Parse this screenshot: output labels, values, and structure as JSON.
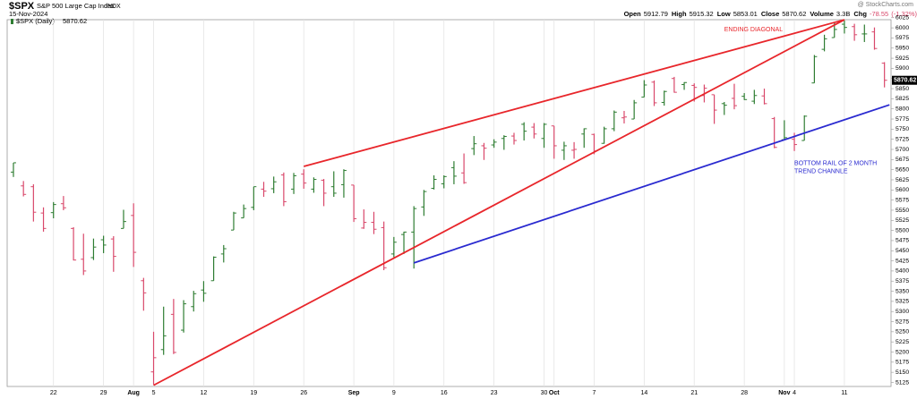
{
  "chart_data": {
    "type": "ohlc",
    "header": {
      "symbol": "$SPX",
      "name": "S&P 500 Large Cap Index",
      "exchange": "INDX",
      "date": "15-Nov-2024",
      "source": "@ StockCharts.com",
      "labels": {
        "open": "Open",
        "high": "High",
        "low": "Low",
        "close": "Close",
        "volume": "Volume",
        "chg": "Chg"
      },
      "volume": "3.3B",
      "chg": -78.55,
      "chg_pct": "(-1.32%)"
    },
    "categories": [
      null,
      null,
      null,
      null,
      "22",
      null,
      null,
      null,
      null,
      "29",
      null,
      null,
      "Aug",
      null,
      "5",
      null,
      null,
      null,
      null,
      "12",
      null,
      null,
      null,
      null,
      "19",
      null,
      null,
      null,
      null,
      "26",
      null,
      null,
      null,
      null,
      "Sep",
      null,
      null,
      null,
      "9",
      null,
      null,
      null,
      null,
      "16",
      null,
      null,
      null,
      null,
      "23",
      null,
      null,
      null,
      null,
      "30",
      "Oct",
      null,
      null,
      null,
      "7",
      null,
      null,
      null,
      null,
      "14",
      null,
      null,
      null,
      null,
      "21",
      null,
      null,
      null,
      null,
      "28",
      null,
      null,
      null,
      "Nov",
      "4",
      null,
      null,
      null,
      null,
      "11",
      null,
      null,
      null,
      null
    ],
    "series": [
      {
        "name": "$SPX (Daily)",
        "up_color": "#2e7d32",
        "down_color": "#d9486b",
        "open": [
          5644,
          5610,
          5608,
          5543,
          5544,
          5566,
          5505,
          5429,
          5433,
          5477,
          5479,
          5505,
          5537,
          5376,
          5151,
          5206,
          5293,
          5254,
          5312,
          5353,
          5376,
          5442,
          5501,
          5531,
          5557,
          5602,
          5603,
          5637,
          5602,
          5639,
          5602,
          5624,
          5608,
          5613,
          5612,
          5506,
          5520,
          5507,
          5442,
          5490,
          5496,
          5558,
          5604,
          5615,
          5655,
          5642,
          5702,
          5709,
          5711,
          5727,
          5733,
          5762,
          5755,
          5727,
          5758,
          5698,
          5698,
          5738,
          5737,
          5715,
          5751,
          5778,
          5775,
          5829,
          5866,
          5816,
          5875,
          5860,
          5858,
          5833,
          5835,
          5813,
          5826,
          5831,
          5819,
          5832,
          5776,
          5724,
          5725,
          5722,
          5864,
          5947,
          5976,
          6009,
          6003,
          5985,
          5990,
          5912.79
        ],
        "high": [
          5667,
          5622,
          5614,
          5557,
          5570,
          5585,
          5508,
          5492,
          5480,
          5487,
          5486,
          5551,
          5567,
          5383,
          5250,
          5312,
          5331,
          5328,
          5351,
          5375,
          5436,
          5464,
          5546,
          5564,
          5608,
          5620,
          5633,
          5643,
          5642,
          5651,
          5631,
          5627,
          5646,
          5651,
          5612,
          5552,
          5546,
          5522,
          5484,
          5497,
          5560,
          5600,
          5636,
          5636,
          5671,
          5690,
          5733,
          5716,
          5725,
          5735,
          5741,
          5767,
          5765,
          5765,
          5758,
          5719,
          5718,
          5752,
          5739,
          5756,
          5796,
          5795,
          5822,
          5871,
          5870,
          5845,
          5879,
          5866,
          5863,
          5860,
          5835,
          5817,
          5862,
          5839,
          5847,
          5850,
          5780,
          5772,
          5741,
          5784,
          5933,
          5983,
          6013,
          6018,
          6010,
          6008,
          6001,
          5915.32
        ],
        "low": [
          5632,
          5584,
          5522,
          5497,
          5530,
          5550,
          5426,
          5390,
          5427,
          5444,
          5398,
          5505,
          5410,
          5302,
          5120,
          5193,
          5195,
          5248,
          5300,
          5324,
          5376,
          5421,
          5501,
          5531,
          5550,
          5583,
          5592,
          5560,
          5590,
          5603,
          5593,
          5560,
          5583,
          5581,
          5521,
          5504,
          5491,
          5402,
          5434,
          5442,
          5406,
          5536,
          5601,
          5604,
          5614,
          5615,
          5686,
          5674,
          5704,
          5699,
          5712,
          5722,
          5727,
          5704,
          5677,
          5674,
          5677,
          5704,
          5688,
          5714,
          5745,
          5764,
          5775,
          5829,
          5807,
          5808,
          5840,
          5847,
          5818,
          5816,
          5763,
          5785,
          5799,
          5822,
          5812,
          5811,
          5703,
          5724,
          5696,
          5722,
          5864,
          5942,
          5976,
          5986,
          5968,
          5965,
          5946,
          5853.01
        ],
        "close": [
          5667,
          5589,
          5545,
          5505,
          5564,
          5556,
          5427,
          5400,
          5459,
          5464,
          5436,
          5522,
          5446,
          5346,
          5186,
          5240,
          5199,
          5319,
          5344,
          5345,
          5434,
          5455,
          5543,
          5554,
          5608,
          5597,
          5620,
          5571,
          5635,
          5617,
          5626,
          5592,
          5592,
          5648,
          5529,
          5520,
          5503,
          5408,
          5471,
          5496,
          5554,
          5596,
          5626,
          5633,
          5634,
          5618,
          5714,
          5703,
          5718,
          5732,
          5722,
          5745,
          5738,
          5762,
          5709,
          5709,
          5700,
          5751,
          5696,
          5751,
          5792,
          5780,
          5815,
          5859,
          5815,
          5843,
          5841,
          5865,
          5853,
          5851,
          5797,
          5809,
          5808,
          5823,
          5833,
          5813,
          5705,
          5729,
          5712,
          5782,
          5929,
          5973,
          5996,
          6001,
          5983,
          5985,
          5949,
          5870.62
        ]
      }
    ],
    "ylim": [
      5115,
      6040
    ],
    "yticks": [
      5125,
      5150,
      5175,
      5200,
      5225,
      5250,
      5275,
      5300,
      5325,
      5350,
      5375,
      5400,
      5425,
      5450,
      5475,
      5500,
      5525,
      5550,
      5575,
      5600,
      5625,
      5650,
      5675,
      5700,
      5725,
      5750,
      5775,
      5800,
      5825,
      5850,
      5875,
      5900,
      5925,
      5950,
      5975,
      6000,
      6025
    ],
    "trendlines": [
      {
        "color": "#e8262b",
        "points": [
          [
            29,
            5658
          ],
          [
            83,
            6020
          ]
        ]
      },
      {
        "color": "#e8262b",
        "points": [
          [
            14,
            5118
          ],
          [
            83,
            6020
          ]
        ]
      },
      {
        "color": "#2a2ad0",
        "points": [
          [
            40,
            5420
          ],
          [
            87.5,
            5810
          ]
        ]
      }
    ],
    "annotations": [
      {
        "color": "#e8262b",
        "lines": [
          "ENDING DIAGONAL"
        ],
        "at": [
          71,
          5995
        ]
      },
      {
        "color": "#2a2ad0",
        "lines": [
          "BOTTOM RAIL OF 2 MONTH",
          "TREND CHANNLE"
        ],
        "at": [
          78,
          5665
        ]
      }
    ],
    "grid": true
  }
}
